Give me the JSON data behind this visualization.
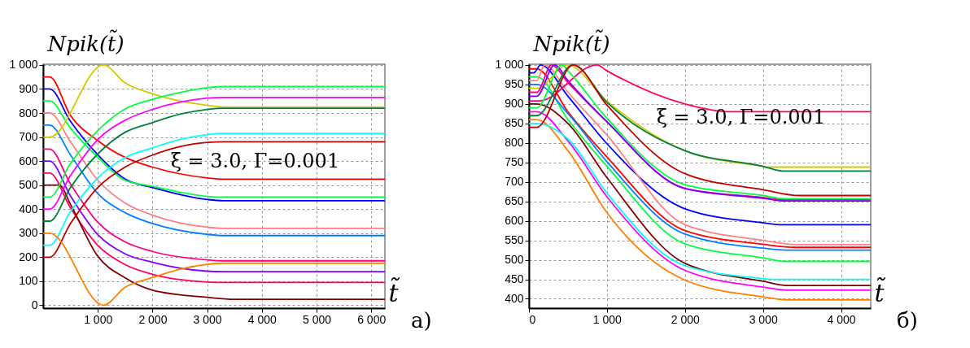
{
  "chart_data": [
    {
      "type": "line",
      "xlabel": "t̃",
      "ylabel": "Npik(t̃)",
      "annotations": [
        "ξ = 3.0,  Γ=0.001",
        "а)"
      ],
      "xlim": [
        0,
        6250
      ],
      "ylim": [
        -12,
        1003
      ],
      "grid": true,
      "line_style": "solid",
      "xticks": [
        {
          "value": 1000,
          "label": "1 000"
        },
        {
          "value": 2000,
          "label": "2 000"
        },
        {
          "value": 3000,
          "label": "3 000"
        },
        {
          "value": 4000,
          "label": "4 000"
        },
        {
          "value": 5000,
          "label": "5 000"
        },
        {
          "value": 6000,
          "label": "6 000"
        }
      ],
      "yticks": [
        0,
        100,
        200,
        300,
        400,
        500,
        600,
        700,
        800,
        900,
        {
          "value": 1000,
          "label": "1 000"
        }
      ],
      "series": [
        {
          "color": "#ff0000",
          "x": [
            0,
            120,
            500,
            1000,
            1500,
            2000,
            3000,
            3300,
            6250
          ],
          "values": [
            950,
            950,
            790,
            685,
            615,
            575,
            530,
            525,
            525
          ]
        },
        {
          "color": "#0000ff",
          "x": [
            0,
            120,
            500,
            1000,
            1500,
            2000,
            3000,
            3300,
            6250
          ],
          "values": [
            900,
            900,
            765,
            626,
            525,
            490,
            440,
            435,
            435
          ]
        },
        {
          "color": "#00ff40",
          "x": [
            0,
            120,
            500,
            1000,
            1500,
            2000,
            3000,
            3300,
            6250
          ],
          "values": [
            850,
            850,
            737,
            616,
            520,
            495,
            453,
            450,
            450
          ]
        },
        {
          "color": "#ff8080",
          "x": [
            0,
            120,
            500,
            1000,
            1500,
            2000,
            3000,
            3300,
            6250
          ],
          "values": [
            800,
            800,
            681,
            520,
            425,
            375,
            325,
            320,
            320
          ]
        },
        {
          "color": "#0080ff",
          "x": [
            0,
            120,
            500,
            1000,
            1500,
            2000,
            3000,
            3300,
            6250
          ],
          "values": [
            750,
            750,
            626,
            465,
            385,
            340,
            295,
            290,
            290
          ]
        },
        {
          "color": "#ff0080",
          "x": [
            0,
            120,
            500,
            1000,
            1500,
            2000,
            3000,
            3300,
            6250
          ],
          "values": [
            650,
            650,
            505,
            345,
            264,
            224,
            189,
            185,
            185
          ]
        },
        {
          "color": "#8000ff",
          "x": [
            0,
            120,
            500,
            1000,
            1500,
            2000,
            3000,
            3300,
            6250
          ],
          "values": [
            600,
            600,
            455,
            294,
            214,
            179,
            142,
            140,
            140
          ]
        },
        {
          "color": "#ff0066",
          "x": [
            0,
            120,
            500,
            1000,
            1500,
            2000,
            3000,
            3300,
            6250
          ],
          "values": [
            550,
            550,
            405,
            249,
            169,
            129,
            97,
            95,
            95
          ]
        },
        {
          "color": "#800000",
          "x": [
            0,
            300,
            500,
            1000,
            1500,
            2000,
            3000,
            3500,
            6250
          ],
          "values": [
            500,
            500,
            420,
            204,
            114,
            63,
            33,
            25,
            25
          ]
        },
        {
          "color": "#d4c800",
          "x": [
            0,
            120,
            1100,
            1500,
            2000,
            2500,
            3000,
            3300,
            6250
          ],
          "values": [
            700,
            700,
            1000,
            925,
            880,
            850,
            832,
            825,
            825
          ]
        },
        {
          "color": "#00ff40",
          "x": [
            0,
            120,
            500,
            1000,
            1500,
            2000,
            2500,
            3000,
            3300,
            6250
          ],
          "values": [
            450,
            450,
            590,
            727,
            817,
            857,
            885,
            905,
            910,
            910
          ]
        },
        {
          "color": "#ff00ff",
          "x": [
            0,
            120,
            500,
            1000,
            1500,
            2000,
            2500,
            3000,
            3300,
            6250
          ],
          "values": [
            400,
            400,
            540,
            690,
            770,
            815,
            845,
            862,
            865,
            865
          ]
        },
        {
          "color": "#008040",
          "x": [
            0,
            120,
            500,
            1000,
            1500,
            2000,
            2500,
            3000,
            3300,
            6250
          ],
          "values": [
            350,
            350,
            490,
            630,
            720,
            760,
            795,
            815,
            820,
            820
          ]
        },
        {
          "color": "#00ffff",
          "x": [
            0,
            120,
            500,
            1000,
            1500,
            2000,
            2500,
            3000,
            3300,
            6250
          ],
          "values": [
            250,
            250,
            390,
            530,
            615,
            655,
            690,
            710,
            715,
            715
          ]
        },
        {
          "color": "#c00000",
          "x": [
            0,
            120,
            500,
            1000,
            1500,
            2000,
            2500,
            3000,
            3300,
            6250
          ],
          "values": [
            200,
            200,
            340,
            490,
            575,
            625,
            660,
            678,
            680,
            680
          ]
        },
        {
          "color": "#ff8000",
          "x": [
            0,
            120,
            1100,
            1500,
            2000,
            2500,
            3000,
            3300,
            6250
          ],
          "values": [
            300,
            300,
            0,
            75,
            115,
            150,
            170,
            175,
            175
          ]
        }
      ]
    },
    {
      "type": "line",
      "xlabel": "t̃",
      "ylabel": "Npik(t̃)",
      "annotations": [
        "ξ = 3.0,  Γ=0.001",
        "б)"
      ],
      "xlim": [
        0,
        4380
      ],
      "ylim": [
        376,
        1002
      ],
      "grid": true,
      "line_style": "solid",
      "xticks": [
        0,
        {
          "value": 1000,
          "label": "1 000"
        },
        {
          "value": 2000,
          "label": "2 000"
        },
        {
          "value": 3000,
          "label": "3 000"
        },
        {
          "value": 4000,
          "label": "4 000"
        }
      ],
      "yticks": [
        400,
        450,
        500,
        550,
        600,
        650,
        700,
        750,
        800,
        850,
        900,
        950,
        {
          "value": 1000,
          "label": "1 000"
        }
      ],
      "series": [
        {
          "color": "#ff0000",
          "x": [
            0,
            100,
            500,
            1000,
            2000,
            3000,
            3420,
            4380
          ],
          "values": [
            990,
            990,
            880,
            764,
            575,
            540,
            532,
            532
          ]
        },
        {
          "color": "#0000ff",
          "x": [
            0,
            60,
            150,
            500,
            1000,
            2000,
            3000,
            3250,
            4380
          ],
          "values": [
            980,
            980,
            1000,
            920,
            798,
            631,
            595,
            590,
            590
          ]
        },
        {
          "color": "#00ff40",
          "x": [
            0,
            100,
            500,
            1000,
            2000,
            3000,
            3290,
            4380
          ],
          "values": [
            970,
            970,
            860,
            740,
            541,
            505,
            496,
            496
          ]
        },
        {
          "color": "#ff8080",
          "x": [
            0,
            100,
            200,
            500,
            1000,
            2000,
            3000,
            3420,
            4380
          ],
          "values": [
            960,
            960,
            1000,
            930,
            820,
            590,
            550,
            539,
            539
          ]
        },
        {
          "color": "#0080ff",
          "x": [
            0,
            100,
            500,
            1000,
            2000,
            3000,
            3290,
            4380
          ],
          "values": [
            950,
            950,
            875,
            752,
            566,
            530,
            525,
            525
          ]
        },
        {
          "color": "#d4c800",
          "x": [
            0,
            100,
            495,
            1000,
            2000,
            3000,
            3066,
            4380
          ],
          "values": [
            940,
            940,
            1000,
            907,
            780,
            740,
            738,
            738
          ]
        },
        {
          "color": "#ff0080",
          "x": [
            0,
            100,
            290,
            500,
            1000,
            2000,
            3000,
            3280,
            4380
          ],
          "values": [
            930,
            930,
            1000,
            955,
            854,
            683,
            660,
            654,
            654
          ]
        },
        {
          "color": "#8000ff",
          "x": [
            0,
            100,
            330,
            500,
            1000,
            2000,
            3000,
            3280,
            4380
          ],
          "values": [
            920,
            920,
            1000,
            960,
            854,
            683,
            658,
            651,
            651
          ]
        },
        {
          "color": "#ff0066",
          "x": [
            0,
            130,
            870,
            1000,
            2000,
            2575,
            4380
          ],
          "values": [
            908,
            908,
            1000,
            985,
            900,
            880,
            880
          ]
        },
        {
          "color": "#800000",
          "x": [
            0,
            100,
            500,
            1000,
            2000,
            3000,
            3310,
            4380
          ],
          "values": [
            900,
            900,
            850,
            711,
            491,
            445,
            434,
            434
          ]
        },
        {
          "color": "#00ff40",
          "x": [
            0,
            100,
            425,
            500,
            1000,
            2000,
            3000,
            3280,
            4380
          ],
          "values": [
            890,
            890,
            1000,
            985,
            863,
            693,
            665,
            657,
            657
          ]
        },
        {
          "color": "#ff00ff",
          "x": [
            0,
            100,
            500,
            1000,
            2000,
            3000,
            3310,
            4380
          ],
          "values": [
            880,
            880,
            805,
            662,
            473,
            430,
            422,
            422
          ]
        },
        {
          "color": "#008040",
          "x": [
            0,
            100,
            560,
            1000,
            2000,
            3000,
            3250,
            4380
          ],
          "values": [
            870,
            870,
            1000,
            904,
            780,
            740,
            728,
            728
          ]
        },
        {
          "color": "#ff8000",
          "x": [
            0,
            100,
            500,
            1000,
            2000,
            3000,
            3310,
            4380
          ],
          "values": [
            860,
            860,
            780,
            621,
            448,
            405,
            397,
            397
          ]
        },
        {
          "color": "#00ffff",
          "x": [
            0,
            100,
            500,
            1000,
            2000,
            3000,
            3100,
            4380
          ],
          "values": [
            850,
            850,
            810,
            671,
            485,
            452,
            450,
            450
          ]
        },
        {
          "color": "#c00000",
          "x": [
            0,
            100,
            570,
            1000,
            2000,
            3000,
            3470,
            4380
          ],
          "values": [
            840,
            840,
            1000,
            897,
            721,
            680,
            665,
            665
          ]
        }
      ]
    }
  ]
}
